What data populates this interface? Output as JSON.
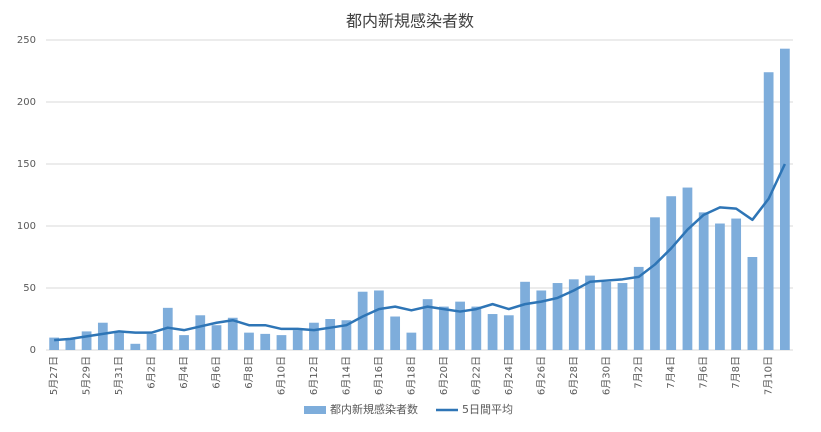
{
  "chart_data": {
    "type": "bar_line",
    "title": "都内新規感染者数",
    "categories": [
      "5月27日",
      null,
      "5月29日",
      null,
      "5月31日",
      null,
      "6月2日",
      null,
      "6月4日",
      null,
      "6月6日",
      null,
      "6月8日",
      null,
      "6月10日",
      null,
      "6月12日",
      null,
      "6月14日",
      null,
      "6月16日",
      null,
      "6月18日",
      null,
      "6月20日",
      null,
      "6月22日",
      null,
      "6月24日",
      null,
      "6月26日",
      null,
      "6月28日",
      null,
      "6月30日",
      null,
      "7月2日",
      null,
      "7月4日",
      null,
      "7月6日",
      null,
      "7月8日",
      null,
      "7月10日",
      null
    ],
    "series": [
      {
        "name": "都内新規感染者数",
        "kind": "bar",
        "color": "#7eaddb",
        "values": [
          10,
          9,
          15,
          22,
          14,
          5,
          13,
          34,
          12,
          28,
          20,
          26,
          14,
          13,
          12,
          16,
          22,
          25,
          24,
          47,
          48,
          27,
          14,
          41,
          35,
          39,
          35,
          29,
          28,
          55,
          48,
          54,
          57,
          60,
          55,
          54,
          67,
          107,
          124,
          131,
          111,
          102,
          106,
          75,
          224,
          243
        ]
      },
      {
        "name": "5日間平均",
        "kind": "line",
        "color": "#2e75b6",
        "values": [
          8,
          9,
          11,
          13,
          15,
          14,
          14,
          18,
          16,
          19,
          22,
          24,
          20,
          20,
          17,
          17,
          16,
          18,
          20,
          27,
          33,
          35,
          32,
          35,
          33,
          31,
          33,
          37,
          33,
          37,
          39,
          42,
          48,
          55,
          56,
          57,
          59,
          69,
          82,
          97,
          109,
          115,
          114,
          105,
          122,
          150
        ]
      }
    ],
    "ylim": [
      0,
      250
    ],
    "yticks": [
      0,
      50,
      100,
      150,
      200,
      250
    ],
    "grid": true,
    "legend": "bottom"
  }
}
